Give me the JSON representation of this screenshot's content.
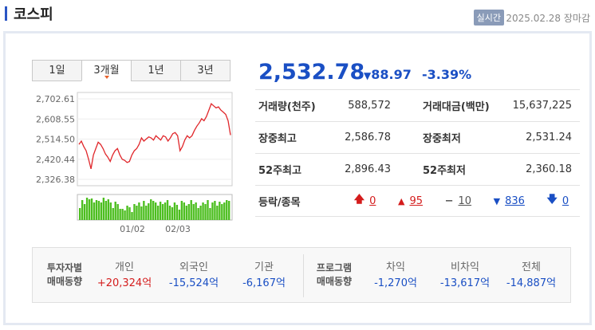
{
  "header": {
    "title": "코스피",
    "realtime_badge": "실시간",
    "datetime": "2025.02.28 장마감"
  },
  "tabs": [
    "1일",
    "3개월",
    "1년",
    "3년"
  ],
  "chart_data": {
    "type": "line",
    "yticks": [
      "2,702.61",
      "2,608.55",
      "2,514.50",
      "2,420.44",
      "2,326.38"
    ],
    "xticks": [
      "01/02",
      "02/03"
    ],
    "ylim": [
      2326.38,
      2702.61
    ],
    "values": [
      2490,
      2505,
      2480,
      2460,
      2420,
      2375,
      2440,
      2470,
      2500,
      2490,
      2470,
      2445,
      2430,
      2410,
      2440,
      2460,
      2470,
      2440,
      2420,
      2415,
      2405,
      2410,
      2440,
      2460,
      2470,
      2490,
      2520,
      2505,
      2515,
      2525,
      2520,
      2510,
      2530,
      2520,
      2510,
      2530,
      2525,
      2505,
      2520,
      2540,
      2545,
      2530,
      2460,
      2480,
      2510,
      2530,
      2520,
      2530,
      2555,
      2575,
      2590,
      2610,
      2600,
      2620,
      2650,
      2680,
      2670,
      2660,
      2665,
      2650,
      2640,
      2630,
      2600,
      2533
    ],
    "volumes": [
      15,
      25,
      20,
      28,
      26,
      27,
      22,
      25,
      24,
      22,
      28,
      24,
      26,
      22,
      15,
      23,
      20,
      14,
      14,
      12,
      18,
      16,
      10,
      20,
      18,
      22,
      17,
      24,
      18,
      21,
      26,
      24,
      22,
      18,
      23,
      20,
      22,
      25,
      18,
      16,
      22,
      19,
      13,
      24,
      22,
      18,
      20,
      25,
      20,
      22,
      15,
      18,
      22,
      20,
      25,
      15,
      22,
      24,
      18,
      23,
      20,
      22,
      25,
      24
    ]
  },
  "quote": {
    "price": "2,532.78",
    "change": "88.97",
    "change_arrow": "▼",
    "percent": "-3.39%"
  },
  "stats": {
    "volume_label": "거래량(천주)",
    "volume": "588,572",
    "amount_label": "거래대금(백만)",
    "amount": "15,637,225",
    "high_label": "장중최고",
    "high": "2,586.78",
    "low_label": "장중최저",
    "low": "2,531.24",
    "w52_high_label": "52주최고",
    "w52_high": "2,896.43",
    "w52_low_label": "52주최저",
    "w52_low": "2,360.18",
    "updown_label": "등락/종목",
    "upper_limit": "0",
    "up": "95",
    "flat": "10",
    "down": "836",
    "lower_limit": "0"
  },
  "investors": {
    "label_line1": "투자자별",
    "label_line2": "매매동향",
    "individual_label": "개인",
    "individual": "+20,324억",
    "foreign_label": "외국인",
    "foreign": "-15,524억",
    "institution_label": "기관",
    "institution": "-6,167억"
  },
  "program": {
    "label_line1": "프로그램",
    "label_line2": "매매동향",
    "arbitrage_label": "차익",
    "arbitrage": "-1,270억",
    "nonarb_label": "비차익",
    "nonarb": "-13,617억",
    "total_label": "전체",
    "total": "-14,887억"
  },
  "colors": {
    "up": "#d41c1c",
    "down": "#1a4fc4",
    "line": "#e0262a",
    "volume": "#4cbe1f"
  }
}
